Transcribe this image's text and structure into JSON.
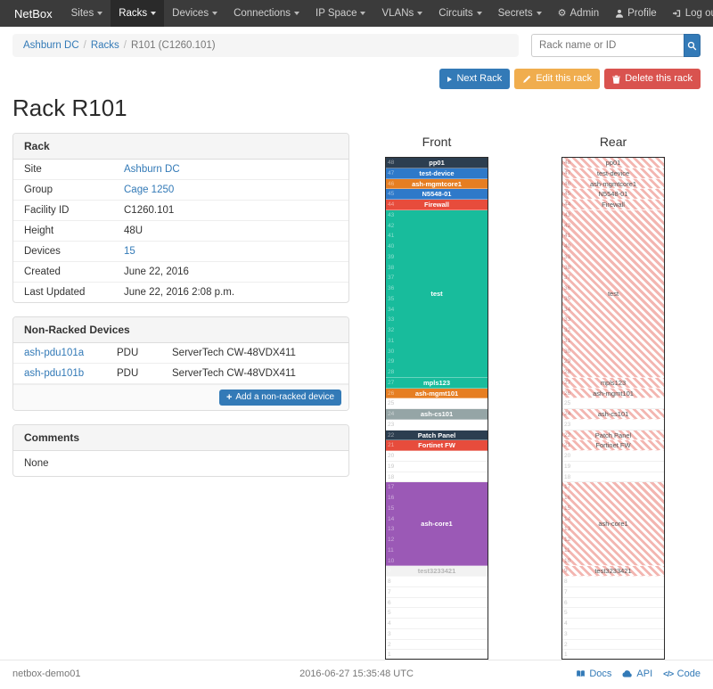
{
  "navbar": {
    "brand": "NetBox",
    "items": [
      {
        "label": "Sites"
      },
      {
        "label": "Racks",
        "active": true
      },
      {
        "label": "Devices"
      },
      {
        "label": "Connections"
      },
      {
        "label": "IP Space"
      },
      {
        "label": "VLANs"
      },
      {
        "label": "Circuits"
      },
      {
        "label": "Secrets"
      }
    ],
    "right": [
      {
        "label": "Admin",
        "icon": "gear"
      },
      {
        "label": "Profile",
        "icon": "user"
      },
      {
        "label": "Log out",
        "icon": "logout"
      }
    ]
  },
  "breadcrumb": {
    "links": [
      "Ashburn DC",
      "Racks"
    ],
    "current": "R101 (C1260.101)"
  },
  "search": {
    "placeholder": "Rack name or ID",
    "icon": "search"
  },
  "actions": {
    "next": {
      "label": "Next Rack",
      "icon": "chevron-right"
    },
    "edit": {
      "label": "Edit this rack",
      "icon": "pencil"
    },
    "delete": {
      "label": "Delete this rack",
      "icon": "trash"
    }
  },
  "page_title": "Rack R101",
  "rack_panel": {
    "title": "Rack",
    "rows": [
      {
        "label": "Site",
        "value": "Ashburn DC",
        "link": true
      },
      {
        "label": "Group",
        "value": "Cage 1250",
        "link": true
      },
      {
        "label": "Facility ID",
        "value": "C1260.101"
      },
      {
        "label": "Height",
        "value": "48U"
      },
      {
        "label": "Devices",
        "value": "15",
        "link": true
      },
      {
        "label": "Created",
        "value": "June 22, 2016"
      },
      {
        "label": "Last Updated",
        "value": "June 22, 2016 2:08 p.m."
      }
    ]
  },
  "nonracked_panel": {
    "title": "Non-Racked Devices",
    "devices": [
      {
        "name": "ash-pdu101a",
        "role": "PDU",
        "type": "ServerTech CW-48VDX411"
      },
      {
        "name": "ash-pdu101b",
        "role": "PDU",
        "type": "ServerTech CW-48VDX411"
      }
    ],
    "add_button": "Add a non-racked device",
    "add_icon": "plus"
  },
  "comments_panel": {
    "title": "Comments",
    "value": "None"
  },
  "elevations": {
    "front_title": "Front",
    "rear_title": "Rear",
    "total_units": 48,
    "units": [
      {
        "name": "pp01",
        "u": 48,
        "h": 1,
        "color": "#2c3e50"
      },
      {
        "name": "test-device",
        "u": 47,
        "h": 1,
        "color": "#2e79c9"
      },
      {
        "name": "ash-mgmtcore1",
        "u": 46,
        "h": 1,
        "color": "#e67e22"
      },
      {
        "name": "N5548-01",
        "u": 45,
        "h": 1,
        "color": "#2e79c9"
      },
      {
        "name": "Firewall",
        "u": 44,
        "h": 1,
        "color": "#e74c3c"
      },
      {
        "name": "test",
        "u": 43,
        "h": 16,
        "color": "#18bc9c"
      },
      {
        "name": "mpls123",
        "u": 27,
        "h": 1,
        "color": "#18bc9c"
      },
      {
        "name": "ash-mgmt101",
        "u": 26,
        "h": 1,
        "color": "#e67e22"
      },
      {
        "name": "ash-cs101",
        "u": 24,
        "h": 1,
        "color": "#95a5a6"
      },
      {
        "name": "Patch Panel",
        "u": 22,
        "h": 1,
        "color": "#2c3e50"
      },
      {
        "name": "Fortinet FW",
        "u": 21,
        "h": 1,
        "color": "#e74c3c"
      },
      {
        "name": "ash-core1",
        "u": 17,
        "h": 8,
        "color": "#9b59b6"
      },
      {
        "name": "test3233421",
        "u": 9,
        "h": 1,
        "color": "#f2f2f2",
        "text_color": "#b5b5b5"
      }
    ]
  },
  "footer": {
    "hostname": "netbox-demo01",
    "timestamp": "2016-06-27 15:35:48 UTC",
    "links": [
      {
        "label": "Docs",
        "icon": "book"
      },
      {
        "label": "API",
        "icon": "cloud"
      },
      {
        "label": "Code",
        "icon": "code"
      }
    ]
  }
}
